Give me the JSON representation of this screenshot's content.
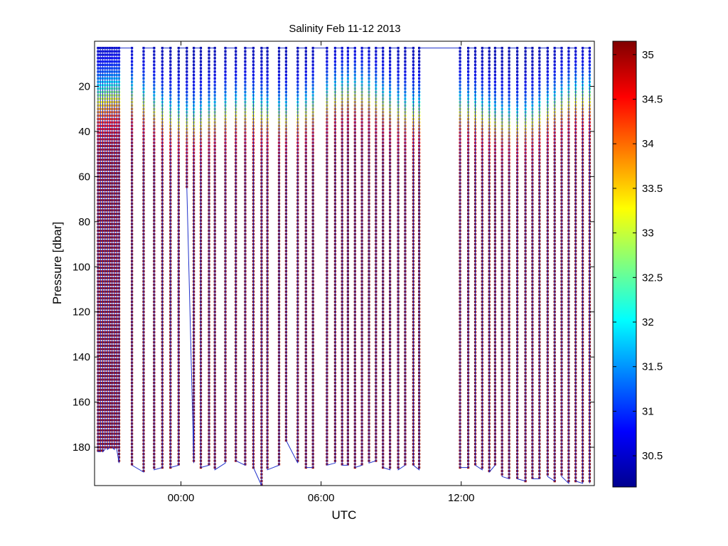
{
  "chart_data": {
    "type": "scatter",
    "title": "Salinity Feb 11-12 2013",
    "xlabel": "UTC",
    "ylabel": "Pressure [dbar]",
    "x_units": "hours UTC (Feb 11 evening to Feb 12)",
    "xlim": [
      -3.7,
      17.7
    ],
    "ylim": [
      0,
      197
    ],
    "y_reversed": true,
    "xticks": [
      0,
      6,
      12
    ],
    "xtick_labels": [
      "00:00",
      "06:00",
      "12:00"
    ],
    "yticks": [
      20,
      40,
      60,
      80,
      100,
      120,
      140,
      160,
      180
    ],
    "ytick_labels": [
      "20",
      "40",
      "60",
      "80",
      "100",
      "120",
      "140",
      "160",
      "180"
    ],
    "colorbar": {
      "range": [
        30.15,
        35.15
      ],
      "ticks": [
        30.5,
        31,
        31.5,
        32,
        32.5,
        33,
        33.5,
        34,
        34.5,
        35
      ],
      "tick_labels": [
        "30.5",
        "31",
        "31.5",
        "32",
        "32.5",
        "33",
        "33.5",
        "34",
        "34.5",
        "35"
      ],
      "colormap": "jet"
    },
    "grid": false,
    "legend": "none",
    "track_line_color": "#2233cc",
    "profile_times": [
      -3.55,
      -3.45,
      -3.35,
      -3.25,
      -3.15,
      -3.05,
      -2.95,
      -2.85,
      -2.75,
      -2.65,
      -2.1,
      -1.6,
      -1.15,
      -0.8,
      -0.45,
      -0.1,
      0.25,
      0.55,
      0.85,
      1.2,
      1.45,
      1.9,
      2.35,
      2.75,
      3.1,
      3.45,
      3.7,
      4.2,
      4.5,
      5.0,
      5.35,
      5.65,
      6.25,
      6.6,
      6.9,
      7.15,
      7.45,
      7.75,
      8.05,
      8.35,
      8.65,
      8.95,
      9.3,
      9.6,
      9.95,
      10.2,
      11.95,
      12.3,
      12.6,
      12.9,
      13.2,
      13.45,
      13.75,
      14.05,
      14.4,
      14.75,
      15.05,
      15.35,
      15.7,
      16.0,
      16.3,
      16.6,
      16.9,
      17.2,
      17.5
    ],
    "profile_max_pressure": [
      182,
      182,
      182,
      181,
      181,
      180,
      180,
      181,
      181,
      187,
      188,
      191,
      190,
      189,
      189,
      188,
      65,
      187,
      189,
      188,
      190,
      187,
      186,
      188,
      189,
      197,
      190,
      188,
      177,
      187,
      189,
      189,
      188,
      187,
      188,
      188,
      189,
      188,
      187,
      186,
      189,
      190,
      190,
      188,
      188,
      190,
      189,
      189,
      188,
      190,
      191,
      188,
      193,
      194,
      194,
      195,
      194,
      194,
      193,
      195,
      193,
      196,
      195,
      196,
      196
    ],
    "salinity_structure": "Fresh surface layer (about 30.2-31.5) in the top 20-35 dbar transitioning through a halocline near 20-45 dbar to saline water (about 34.8-35.1) below 50 dbar; halocline shallower near 06:00 and 15:00, deeper near 03:00 and 16:30."
  }
}
